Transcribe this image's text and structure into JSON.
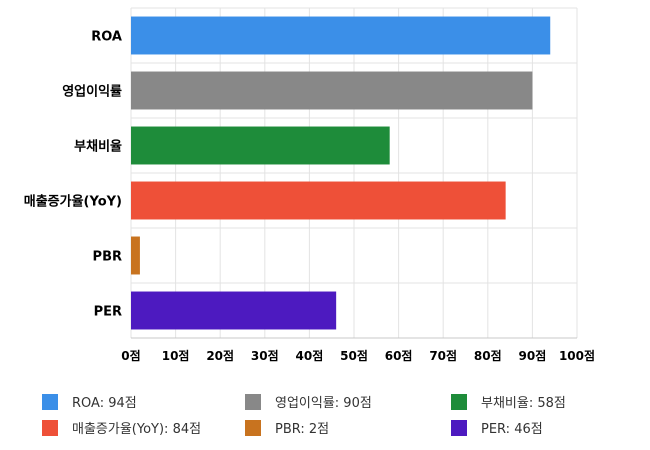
{
  "chart_data": {
    "type": "bar",
    "orientation": "horizontal",
    "categories": [
      "ROA",
      "영업이익률",
      "부채비율",
      "매출증가율(YoY)",
      "PBR",
      "PER"
    ],
    "values": [
      94,
      90,
      58,
      84,
      2,
      46
    ],
    "colors": [
      "#3b8fe8",
      "#888888",
      "#1e8c3a",
      "#ee5038",
      "#c8731f",
      "#4d1ac0"
    ],
    "xlim": [
      0,
      100
    ],
    "xticks": [
      0,
      10,
      20,
      30,
      40,
      50,
      60,
      70,
      80,
      90,
      100
    ],
    "tick_suffix": "점",
    "grid": true,
    "legend": {
      "placement": "bottom",
      "items": [
        {
          "label": "ROA: 94점",
          "color": "#3b8fe8"
        },
        {
          "label": "영업이익률: 90점",
          "color": "#888888"
        },
        {
          "label": "부채비율: 58점",
          "color": "#1e8c3a"
        },
        {
          "label": "매출증가율(YoY): 84점",
          "color": "#ee5038"
        },
        {
          "label": "PBR: 2점",
          "color": "#c8731f"
        },
        {
          "label": "PER: 46점",
          "color": "#4d1ac0"
        }
      ]
    }
  }
}
